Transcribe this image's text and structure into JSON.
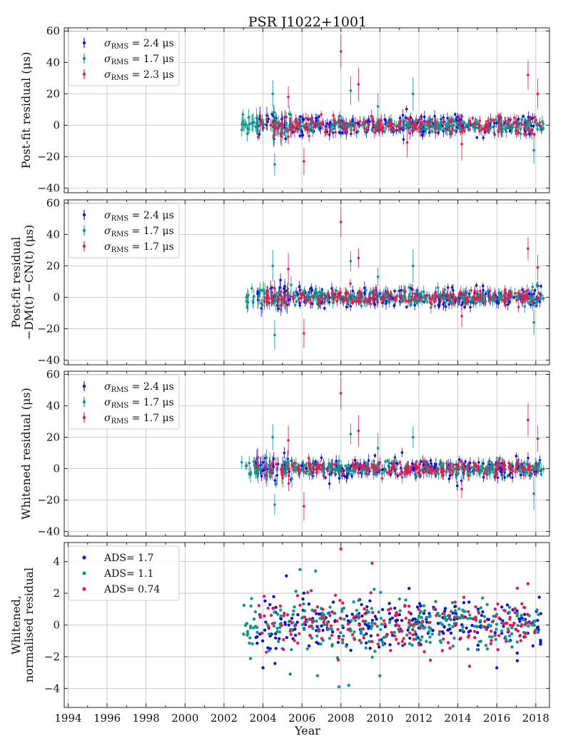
{
  "figure": {
    "title": "PSR J1022+1001",
    "xlabel": "Year",
    "colors": {
      "blue": "#1515c8",
      "teal": "#14948a",
      "red": "#dc1f52",
      "grid": "#bdbdbd",
      "axis": "#222222"
    }
  },
  "chart_data": [
    {
      "type": "scatter",
      "panel": "post-fit",
      "ylabel": [
        "Post-fit residual (μs)"
      ],
      "xlim": [
        1993.8,
        2018.7
      ],
      "ylim": [
        -43,
        62
      ],
      "yticks": [
        -40,
        -20,
        0,
        20,
        40,
        60
      ],
      "grid": true,
      "error_bars": true,
      "legend_position": "top-left",
      "legend": [
        {
          "sym": "σ",
          "sub": "RMS",
          "rest": " = 2.4 μs",
          "color": "blue"
        },
        {
          "sym": "σ",
          "sub": "RMS",
          "rest": " = 1.7 μs",
          "color": "teal"
        },
        {
          "sym": "σ",
          "sub": "RMS",
          "rest": " = 2.3 μs",
          "color": "red"
        }
      ],
      "series": [
        {
          "name": "blue",
          "color": "#1515c8",
          "x_range": [
            2003.6,
            2018.3
          ],
          "spread": 2.4,
          "n": 260
        },
        {
          "name": "teal",
          "color": "#14948a",
          "x_range": [
            2002.9,
            2018.4
          ],
          "spread": 1.7,
          "n": 300
        },
        {
          "name": "red",
          "color": "#dc1f52",
          "x_range": [
            2003.7,
            2018.3
          ],
          "spread": 2.3,
          "n": 190
        }
      ],
      "outliers": [
        {
          "series": "red",
          "x": 2008.0,
          "y": 47
        },
        {
          "series": "teal",
          "x": 2008.5,
          "y": 22
        },
        {
          "series": "red",
          "x": 2008.9,
          "y": 26
        },
        {
          "series": "teal",
          "x": 2004.5,
          "y": 20
        },
        {
          "series": "red",
          "x": 2005.3,
          "y": 18
        },
        {
          "series": "teal",
          "x": 2011.7,
          "y": 20
        },
        {
          "series": "red",
          "x": 2017.6,
          "y": 32
        },
        {
          "series": "red",
          "x": 2018.1,
          "y": 20
        },
        {
          "series": "red",
          "x": 2006.1,
          "y": -23
        },
        {
          "series": "teal",
          "x": 2004.6,
          "y": -25
        },
        {
          "series": "teal",
          "x": 2017.9,
          "y": -16
        },
        {
          "series": "red",
          "x": 2014.2,
          "y": -12
        },
        {
          "series": "red",
          "x": 2011.4,
          "y": -11
        },
        {
          "series": "teal",
          "x": 2009.9,
          "y": 12
        }
      ]
    },
    {
      "type": "scatter",
      "panel": "post-fit-minus-dm-cn",
      "ylabel": [
        "Post-fit residual",
        "−DM(t) −CN(t) (μs)"
      ],
      "xlim": [
        1993.8,
        2018.7
      ],
      "ylim": [
        -43,
        62
      ],
      "yticks": [
        -40,
        -20,
        0,
        20,
        40,
        60
      ],
      "grid": true,
      "error_bars": true,
      "legend_position": "top-left",
      "legend": [
        {
          "sym": "σ",
          "sub": "RMS",
          "rest": " = 2.4 μs",
          "color": "blue"
        },
        {
          "sym": "σ",
          "sub": "RMS",
          "rest": " = 1.7 μs",
          "color": "teal"
        },
        {
          "sym": "σ",
          "sub": "RMS",
          "rest": " = 1.7 μs",
          "color": "red"
        }
      ],
      "series": [
        {
          "name": "blue",
          "color": "#1515c8",
          "x_range": [
            2003.6,
            2018.3
          ],
          "spread": 2.4,
          "n": 260
        },
        {
          "name": "teal",
          "color": "#14948a",
          "x_range": [
            2002.9,
            2018.4
          ],
          "spread": 1.7,
          "n": 300
        },
        {
          "name": "red",
          "color": "#dc1f52",
          "x_range": [
            2003.7,
            2018.3
          ],
          "spread": 1.7,
          "n": 190
        }
      ],
      "outliers": [
        {
          "series": "red",
          "x": 2008.0,
          "y": 48
        },
        {
          "series": "teal",
          "x": 2008.5,
          "y": 23
        },
        {
          "series": "red",
          "x": 2008.9,
          "y": 25
        },
        {
          "series": "teal",
          "x": 2004.5,
          "y": 20
        },
        {
          "series": "red",
          "x": 2005.3,
          "y": 18
        },
        {
          "series": "teal",
          "x": 2011.7,
          "y": 20
        },
        {
          "series": "red",
          "x": 2017.6,
          "y": 31
        },
        {
          "series": "red",
          "x": 2018.1,
          "y": 19
        },
        {
          "series": "red",
          "x": 2006.1,
          "y": -23
        },
        {
          "series": "teal",
          "x": 2004.6,
          "y": -24
        },
        {
          "series": "teal",
          "x": 2017.9,
          "y": -16
        },
        {
          "series": "red",
          "x": 2014.2,
          "y": -12
        },
        {
          "series": "teal",
          "x": 2009.9,
          "y": 13
        }
      ]
    },
    {
      "type": "scatter",
      "panel": "whitened",
      "ylabel": [
        "Whitened residual (μs)"
      ],
      "xlim": [
        1993.8,
        2018.7
      ],
      "ylim": [
        -43,
        62
      ],
      "yticks": [
        -40,
        -20,
        0,
        20,
        40,
        60
      ],
      "grid": true,
      "error_bars": true,
      "legend_position": "top-left",
      "legend": [
        {
          "sym": "σ",
          "sub": "RMS",
          "rest": " = 2.4 μs",
          "color": "blue"
        },
        {
          "sym": "σ",
          "sub": "RMS",
          "rest": " = 1.7 μs",
          "color": "teal"
        },
        {
          "sym": "σ",
          "sub": "RMS",
          "rest": " = 1.7 μs",
          "color": "red"
        }
      ],
      "series": [
        {
          "name": "blue",
          "color": "#1515c8",
          "x_range": [
            2003.6,
            2018.3
          ],
          "spread": 2.4,
          "n": 260
        },
        {
          "name": "teal",
          "color": "#14948a",
          "x_range": [
            2002.9,
            2018.4
          ],
          "spread": 1.7,
          "n": 300
        },
        {
          "name": "red",
          "color": "#dc1f52",
          "x_range": [
            2003.7,
            2018.3
          ],
          "spread": 1.7,
          "n": 190
        }
      ],
      "outliers": [
        {
          "series": "red",
          "x": 2008.0,
          "y": 48
        },
        {
          "series": "teal",
          "x": 2008.5,
          "y": 22
        },
        {
          "series": "red",
          "x": 2008.9,
          "y": 24
        },
        {
          "series": "teal",
          "x": 2004.5,
          "y": 20
        },
        {
          "series": "red",
          "x": 2005.3,
          "y": 18
        },
        {
          "series": "teal",
          "x": 2011.7,
          "y": 20
        },
        {
          "series": "red",
          "x": 2017.6,
          "y": 31
        },
        {
          "series": "red",
          "x": 2018.1,
          "y": 19
        },
        {
          "series": "red",
          "x": 2006.1,
          "y": -24
        },
        {
          "series": "teal",
          "x": 2004.6,
          "y": -23
        },
        {
          "series": "teal",
          "x": 2017.9,
          "y": -16
        },
        {
          "series": "red",
          "x": 2014.2,
          "y": -13
        },
        {
          "series": "teal",
          "x": 2009.9,
          "y": 13
        }
      ]
    },
    {
      "type": "scatter",
      "panel": "normalised",
      "ylabel": [
        "Whitened,",
        "normalised residual"
      ],
      "xlabel": "Year",
      "xlim": [
        1993.8,
        2018.7
      ],
      "ylim": [
        -5.2,
        5.2
      ],
      "yticks": [
        -4,
        -2,
        0,
        2,
        4
      ],
      "xticks": [
        1994,
        1996,
        1998,
        2000,
        2002,
        2004,
        2006,
        2008,
        2010,
        2012,
        2014,
        2016,
        2018
      ],
      "grid": true,
      "error_bars": false,
      "legend_position": "top-left",
      "legend": [
        {
          "label": "ADS",
          "rest": "= 1.7",
          "color": "blue"
        },
        {
          "label": "ADS",
          "rest": "= 1.1",
          "color": "teal"
        },
        {
          "label": "ADS",
          "rest": "= 0.74",
          "color": "red"
        }
      ],
      "series": [
        {
          "name": "blue",
          "color": "#1515c8",
          "x_range": [
            2003.6,
            2018.3
          ],
          "spread": 1.0,
          "n": 240
        },
        {
          "name": "teal",
          "color": "#14948a",
          "x_range": [
            2002.9,
            2018.4
          ],
          "spread": 1.0,
          "n": 300
        },
        {
          "name": "red",
          "color": "#dc1f52",
          "x_range": [
            2003.7,
            2018.3
          ],
          "spread": 1.0,
          "n": 190
        }
      ],
      "outliers": [
        {
          "series": "red",
          "x": 2008.0,
          "y": 4.8
        },
        {
          "series": "red",
          "x": 2009.6,
          "y": 3.9
        },
        {
          "series": "teal",
          "x": 2005.9,
          "y": 3.5
        },
        {
          "series": "teal",
          "x": 2006.7,
          "y": 3.4
        },
        {
          "series": "blue",
          "x": 2005.2,
          "y": 3.1
        },
        {
          "series": "red",
          "x": 2017.6,
          "y": 2.6
        },
        {
          "series": "teal",
          "x": 2007.9,
          "y": -3.9
        },
        {
          "series": "teal",
          "x": 2008.4,
          "y": -3.8
        },
        {
          "series": "teal",
          "x": 2006.8,
          "y": -3.2
        },
        {
          "series": "teal",
          "x": 2010.0,
          "y": -3.2
        },
        {
          "series": "teal",
          "x": 2005.4,
          "y": -3.1
        },
        {
          "series": "blue",
          "x": 2004.0,
          "y": -2.7
        },
        {
          "series": "blue",
          "x": 2016.0,
          "y": -2.7
        },
        {
          "series": "red",
          "x": 2014.6,
          "y": -2.6
        }
      ]
    }
  ]
}
